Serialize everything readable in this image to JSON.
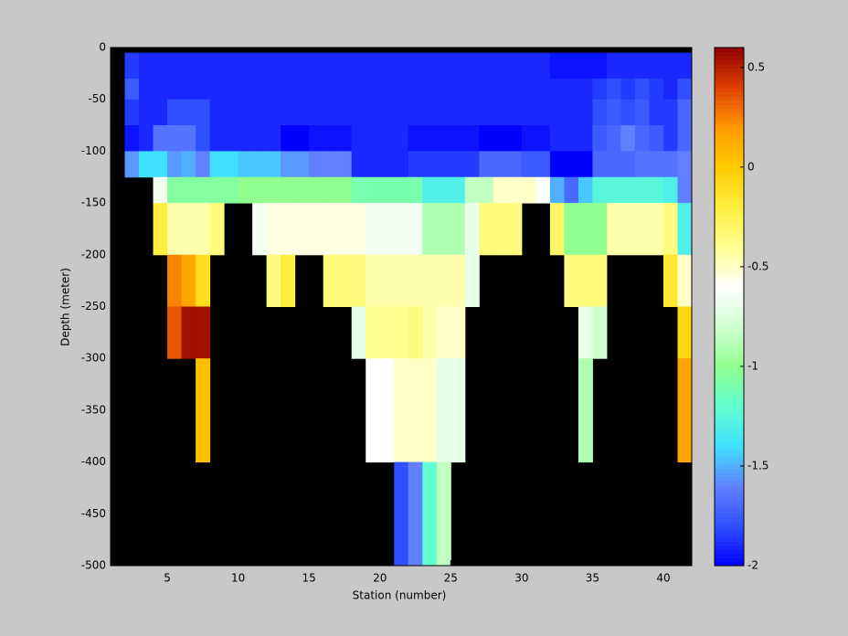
{
  "chart_data": {
    "type": "heatmap",
    "xlabel": "Station (number)",
    "ylabel": "Depth (meter)",
    "xlim": [
      1,
      42
    ],
    "ylim": [
      -500,
      0
    ],
    "xticks": [
      5,
      10,
      15,
      20,
      25,
      30,
      35,
      40
    ],
    "yticks": [
      0,
      -50,
      -100,
      -150,
      -200,
      -250,
      -300,
      -350,
      -400,
      -450,
      -500
    ],
    "x_edges": [
      2,
      3,
      4,
      5,
      6,
      7,
      8,
      9,
      10,
      11,
      12,
      13,
      14,
      15,
      16,
      17,
      18,
      19,
      20,
      21,
      22,
      23,
      24,
      25,
      26,
      27,
      28,
      29,
      30,
      31,
      32,
      33,
      34,
      35,
      36,
      37,
      38,
      39,
      40,
      41,
      42
    ],
    "y_edges": [
      -5,
      -30,
      -50,
      -75,
      -100,
      -125,
      -150,
      -200,
      -250,
      -300,
      -400,
      -500
    ],
    "values": [
      [
        -1.85,
        -1.9,
        -1.9,
        -1.9,
        -1.9,
        -1.9,
        -1.9,
        -1.9,
        -1.9,
        -1.9,
        -1.9,
        -1.9,
        -1.9,
        -1.9,
        -1.9,
        -1.9,
        -1.9,
        -1.9,
        -1.9,
        -1.9,
        -1.9,
        -1.9,
        -1.9,
        -1.9,
        -1.9,
        -1.9,
        -1.9,
        -1.9,
        -1.9,
        -1.9,
        -1.95,
        -1.95,
        -1.95,
        -1.95,
        -1.9,
        -1.9,
        -1.9,
        -1.9,
        -1.9,
        -1.9
      ],
      [
        -1.75,
        -1.9,
        -1.9,
        -1.9,
        -1.9,
        -1.9,
        -1.9,
        -1.9,
        -1.9,
        -1.9,
        -1.9,
        -1.9,
        -1.9,
        -1.9,
        -1.9,
        -1.9,
        -1.9,
        -1.9,
        -1.9,
        -1.9,
        -1.9,
        -1.9,
        -1.9,
        -1.9,
        -1.9,
        -1.9,
        -1.9,
        -1.9,
        -1.9,
        -1.9,
        -1.9,
        -1.9,
        -1.9,
        -1.85,
        -1.8,
        -1.85,
        -1.8,
        -1.85,
        -1.9,
        -1.8
      ],
      [
        -1.85,
        -1.9,
        -1.9,
        -1.8,
        -1.8,
        -1.8,
        -1.9,
        -1.9,
        -1.9,
        -1.9,
        -1.9,
        -1.9,
        -1.9,
        -1.9,
        -1.9,
        -1.9,
        -1.9,
        -1.9,
        -1.9,
        -1.9,
        -1.9,
        -1.9,
        -1.9,
        -1.9,
        -1.9,
        -1.9,
        -1.9,
        -1.9,
        -1.9,
        -1.9,
        -1.9,
        -1.9,
        -1.9,
        -1.8,
        -1.75,
        -1.8,
        -1.75,
        -1.85,
        -1.85,
        -1.7
      ],
      [
        -1.95,
        -1.9,
        -1.65,
        -1.65,
        -1.65,
        -1.8,
        -1.9,
        -1.9,
        -1.9,
        -1.9,
        -1.9,
        -2.0,
        -2.0,
        -1.95,
        -1.95,
        -1.95,
        -1.9,
        -1.9,
        -1.9,
        -1.9,
        -1.95,
        -1.95,
        -1.95,
        -1.95,
        -1.95,
        -2.0,
        -2.0,
        -2.0,
        -1.95,
        -1.95,
        -1.9,
        -1.9,
        -1.9,
        -1.75,
        -1.7,
        -1.6,
        -1.7,
        -1.75,
        -1.85,
        -1.7
      ],
      [
        -1.55,
        -1.4,
        -1.4,
        -1.55,
        -1.5,
        -1.6,
        -1.4,
        -1.4,
        -1.45,
        -1.45,
        -1.45,
        -1.55,
        -1.55,
        -1.6,
        -1.6,
        -1.6,
        -1.9,
        -1.9,
        -1.9,
        -1.9,
        -1.85,
        -1.85,
        -1.85,
        -1.85,
        -1.85,
        -1.7,
        -1.7,
        -1.7,
        -1.75,
        -1.75,
        -2.0,
        -2.0,
        -2.0,
        -1.7,
        -1.7,
        -1.7,
        -1.65,
        -1.65,
        -1.65,
        -1.6
      ],
      [
        null,
        null,
        -0.65,
        -1.05,
        -1.05,
        -1.05,
        -1.05,
        -1.05,
        -1.0,
        -1.0,
        -1.0,
        -1.0,
        -1.0,
        -1.0,
        -1.0,
        -1.0,
        -1.1,
        -1.1,
        -1.1,
        -1.1,
        -1.1,
        -1.3,
        -1.3,
        -1.3,
        -0.85,
        -0.85,
        -0.5,
        -0.5,
        -0.5,
        -0.6,
        -1.5,
        -1.7,
        -1.45,
        -1.25,
        -1.25,
        -1.25,
        -1.25,
        -1.25,
        -1.3,
        -1.6
      ],
      [
        null,
        null,
        -0.2,
        -0.45,
        -0.45,
        -0.45,
        -0.35,
        null,
        null,
        -0.65,
        -0.55,
        -0.55,
        -0.55,
        -0.55,
        -0.55,
        -0.55,
        -0.55,
        -0.65,
        -0.65,
        -0.65,
        -0.65,
        -0.9,
        -0.9,
        -0.9,
        -0.7,
        -0.35,
        -0.35,
        -0.35,
        null,
        null,
        -0.3,
        -1.0,
        -1.0,
        -1.0,
        -0.45,
        -0.45,
        -0.45,
        -0.45,
        -0.35,
        -1.3
      ],
      [
        null,
        null,
        null,
        0.25,
        0.15,
        -0.1,
        null,
        null,
        null,
        null,
        -0.35,
        -0.2,
        null,
        null,
        -0.35,
        -0.35,
        -0.35,
        -0.45,
        -0.45,
        -0.45,
        -0.45,
        -0.45,
        -0.45,
        -0.45,
        -0.7,
        null,
        null,
        null,
        null,
        null,
        null,
        -0.35,
        -0.35,
        -0.35,
        null,
        null,
        null,
        null,
        -0.15,
        -0.5
      ],
      [
        null,
        null,
        null,
        0.35,
        0.55,
        0.55,
        null,
        null,
        null,
        null,
        null,
        null,
        null,
        null,
        null,
        null,
        -0.7,
        -0.4,
        -0.4,
        -0.4,
        -0.35,
        -0.45,
        -0.5,
        -0.5,
        null,
        null,
        null,
        null,
        null,
        null,
        null,
        null,
        -0.7,
        -0.8,
        null,
        null,
        null,
        null,
        null,
        -0.05
      ],
      [
        null,
        null,
        null,
        null,
        null,
        0.05,
        null,
        null,
        null,
        null,
        null,
        null,
        null,
        null,
        null,
        null,
        null,
        -0.6,
        -0.6,
        -0.5,
        -0.5,
        -0.5,
        -0.7,
        -0.7,
        null,
        null,
        null,
        null,
        null,
        null,
        null,
        null,
        -0.9,
        null,
        null,
        null,
        null,
        null,
        null,
        0.15
      ],
      [
        null,
        null,
        null,
        null,
        null,
        null,
        null,
        null,
        null,
        null,
        null,
        null,
        null,
        null,
        null,
        null,
        null,
        null,
        null,
        -1.8,
        -1.6,
        -1.2,
        -0.85,
        null,
        null,
        null,
        null,
        null,
        null,
        null,
        null,
        null,
        null,
        null,
        null,
        null,
        null,
        null,
        null,
        null
      ]
    ],
    "clim": [
      -2,
      0.6
    ],
    "colorbar_ticks": [
      -2,
      -1.5,
      -1,
      -0.5,
      0,
      0.5
    ],
    "colormap": [
      "#0000ff",
      "#3050ff",
      "#6080ff",
      "#40e0ff",
      "#60ffd0",
      "#90ff90",
      "#d0ffd0",
      "#ffffff",
      "#ffff90",
      "#ffee40",
      "#ffcc00",
      "#ff9900",
      "#e04000",
      "#900000"
    ],
    "missing_color": "#000000"
  }
}
